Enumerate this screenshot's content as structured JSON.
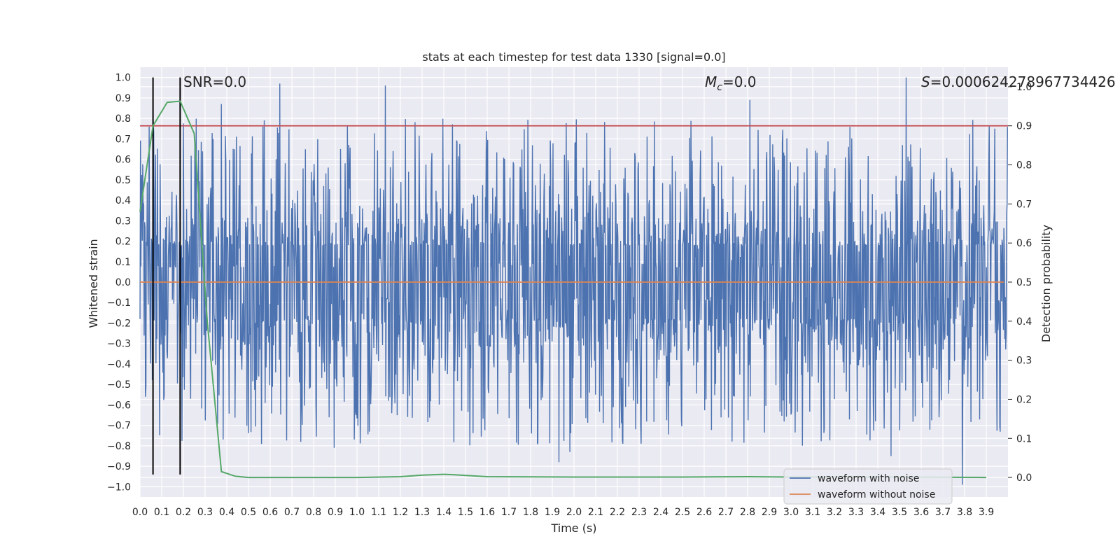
{
  "chart_data": {
    "type": "line",
    "title": "stats at each timestep for test data 1330 [signal=0.0]",
    "xlabel": "Time (s)",
    "ylabel": "Whitened strain",
    "y2label": "Detection probability",
    "xlim": [
      0.0,
      4.0
    ],
    "ylim": [
      -1.05,
      1.05
    ],
    "y2lim": [
      -0.05,
      1.05
    ],
    "grid": true,
    "x_ticks": [
      "0.0",
      "0.1",
      "0.2",
      "0.3",
      "0.4",
      "0.5",
      "0.6",
      "0.7",
      "0.8",
      "0.9",
      "1.0",
      "1.1",
      "1.2",
      "1.3",
      "1.4",
      "1.5",
      "1.6",
      "1.7",
      "1.8",
      "1.9",
      "2.0",
      "2.1",
      "2.2",
      "2.3",
      "2.4",
      "2.5",
      "2.6",
      "2.7",
      "2.8",
      "2.9",
      "3.0",
      "3.1",
      "3.2",
      "3.3",
      "3.4",
      "3.5",
      "3.6",
      "3.7",
      "3.8",
      "3.9"
    ],
    "y_ticks": [
      "1.0",
      "0.9",
      "0.8",
      "0.7",
      "0.6",
      "0.5",
      "0.4",
      "0.3",
      "0.2",
      "0.1",
      "0.0",
      "−0.1",
      "−0.2",
      "−0.3",
      "−0.4",
      "−0.5",
      "−0.6",
      "−0.7",
      "−0.8",
      "−0.9",
      "−1.0"
    ],
    "y2_ticks": [
      "1.0",
      "0.9",
      "0.8",
      "0.7",
      "0.6",
      "0.5",
      "0.4",
      "0.3",
      "0.2",
      "0.1",
      "0.0"
    ],
    "annotations": {
      "snr": "SNR=0.0",
      "mc_symbol": "M",
      "mc_sub": "c",
      "mc_value": "=0.0",
      "s_symbol": "S",
      "s_value": "=0.000624278967734426"
    },
    "threshold_line": {
      "axis": "right",
      "y": 0.9,
      "color": "#c44e52"
    },
    "vertical_lines": [
      {
        "x": 0.06,
        "color": "#000000"
      },
      {
        "x": 0.185,
        "color": "#000000"
      }
    ],
    "series": [
      {
        "name": "waveform with noise",
        "axis": "left",
        "color": "#4c72b0",
        "kind": "noise",
        "peaks": [
          {
            "x": 0.375,
            "y": 0.87
          },
          {
            "x": 0.645,
            "y": 0.97
          },
          {
            "x": 1.13,
            "y": 0.96
          },
          {
            "x": 2.81,
            "y": 0.89
          },
          {
            "x": 3.53,
            "y": 1.0
          },
          {
            "x": 0.895,
            "y": -0.81
          },
          {
            "x": 1.93,
            "y": -0.88
          },
          {
            "x": 1.98,
            "y": -0.83
          },
          {
            "x": 3.46,
            "y": -0.85
          },
          {
            "x": 3.79,
            "y": -0.99
          }
        ]
      },
      {
        "name": "waveform without noise",
        "axis": "left",
        "color": "#dd8452",
        "x": [
          0.0,
          3.98
        ],
        "y": [
          0.0,
          0.0
        ]
      },
      {
        "name": "detection probability",
        "axis": "right",
        "color": "#55a868",
        "x": [
          0.0,
          0.06,
          0.125,
          0.185,
          0.25,
          0.31,
          0.375,
          0.44,
          0.5,
          0.7,
          1.0,
          1.2,
          1.3,
          1.4,
          1.45,
          1.6,
          2.0,
          2.5,
          2.8,
          3.0,
          3.5,
          3.9
        ],
        "y": [
          0.68,
          0.9,
          0.96,
          0.963,
          0.88,
          0.4,
          0.015,
          0.003,
          0.0,
          0.0,
          0.0,
          0.002,
          0.006,
          0.008,
          0.007,
          0.002,
          0.001,
          0.001,
          0.002,
          0.001,
          0.001,
          0.0
        ]
      }
    ],
    "legend": {
      "placement": "lower-right",
      "entries": [
        {
          "label": "waveform with noise",
          "color": "#4c72b0"
        },
        {
          "label": "waveform without noise",
          "color": "#dd8452"
        }
      ]
    }
  }
}
